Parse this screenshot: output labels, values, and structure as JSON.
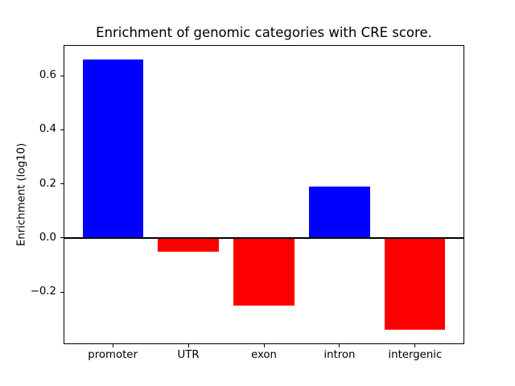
{
  "window": {
    "background": "#ffffff"
  },
  "chart_data": {
    "type": "bar",
    "title": "Enrichment of genomic categories with CRE score.",
    "xlabel": "",
    "ylabel": "Enrichment (log10)",
    "categories": [
      "promoter",
      "UTR",
      "exon",
      "intron",
      "intergenic"
    ],
    "values": [
      0.66,
      -0.05,
      -0.25,
      0.19,
      -0.34
    ],
    "bar_colors": [
      "#0000ff",
      "#ff0000",
      "#ff0000",
      "#0000ff",
      "#ff0000"
    ],
    "positive_color": "#0000ff",
    "negative_color": "#ff0000",
    "ylim": [
      -0.39,
      0.71
    ],
    "yticks": [
      0.6,
      0.4,
      0.2,
      0.0,
      -0.2
    ],
    "ytick_labels": [
      "0.6",
      "0.4",
      "0.2",
      "0.0",
      "−0.2"
    ],
    "bar_width_fraction": 0.8,
    "grid": false,
    "legend": false,
    "zero_line": true,
    "axis_color": "#000000",
    "text_color": "#000000"
  }
}
